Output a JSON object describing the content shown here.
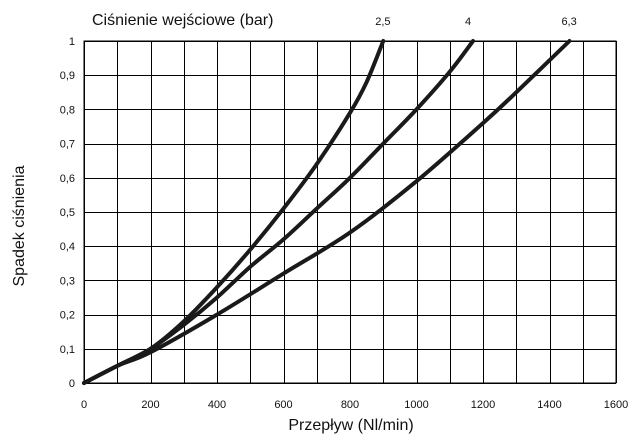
{
  "chart_data": {
    "type": "line",
    "title": "Ciśnienie wejściowe (bar)",
    "xlabel": "Przepływ (Nl/min)",
    "ylabel": "Spadek ciśnienia",
    "xlim": [
      0,
      1600
    ],
    "ylim": [
      0,
      1
    ],
    "xticks": [
      0,
      200,
      400,
      600,
      800,
      1000,
      1200,
      1400,
      1600
    ],
    "xtick_labels": [
      "0",
      "200",
      "400",
      "600",
      "800",
      "1000",
      "1200",
      "1400",
      "1600"
    ],
    "yticks": [
      0,
      0.1,
      0.2,
      0.3,
      0.4,
      0.5,
      0.6,
      0.7,
      0.8,
      0.9,
      1
    ],
    "ytick_labels": [
      "0",
      "0,1",
      "0,2",
      "0,3",
      "0,4",
      "0,5",
      "0,6",
      "0,7",
      "0,8",
      "0,9",
      "1"
    ],
    "grid": true,
    "series": [
      {
        "name": "2,5",
        "x": [
          0,
          100,
          200,
          300,
          400,
          500,
          600,
          700,
          800,
          850,
          900
        ],
        "y": [
          0,
          0.05,
          0.1,
          0.18,
          0.28,
          0.39,
          0.51,
          0.64,
          0.79,
          0.88,
          1.0
        ]
      },
      {
        "name": "4",
        "x": [
          0,
          100,
          200,
          300,
          400,
          500,
          600,
          700,
          800,
          900,
          1000,
          1100,
          1170
        ],
        "y": [
          0,
          0.05,
          0.1,
          0.17,
          0.25,
          0.34,
          0.42,
          0.51,
          0.6,
          0.7,
          0.8,
          0.91,
          1.0
        ]
      },
      {
        "name": "6,3",
        "x": [
          0,
          100,
          200,
          400,
          600,
          800,
          1000,
          1200,
          1300,
          1460
        ],
        "y": [
          0,
          0.05,
          0.09,
          0.2,
          0.32,
          0.44,
          0.59,
          0.76,
          0.85,
          1.0
        ]
      }
    ]
  }
}
